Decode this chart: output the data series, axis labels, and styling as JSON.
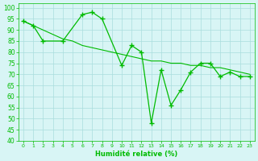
{
  "line_zigzag_x": [
    0,
    1,
    2,
    4,
    6,
    7,
    8,
    10,
    11,
    12,
    13,
    14,
    15,
    16,
    17,
    18,
    19,
    20,
    21,
    22,
    23
  ],
  "line_zigzag_y": [
    94,
    92,
    85,
    85,
    97,
    98,
    95,
    74,
    83,
    80,
    48,
    72,
    56,
    63,
    71,
    75,
    75,
    69,
    71,
    69,
    69
  ],
  "line_straight_x": [
    0,
    1,
    2,
    3,
    4,
    5,
    6,
    7,
    8,
    9,
    10,
    11,
    12,
    13,
    14,
    15,
    16,
    17,
    18,
    19,
    20,
    21,
    22,
    23
  ],
  "line_straight_y": [
    94,
    92,
    90,
    88,
    86,
    85,
    83,
    82,
    81,
    80,
    79,
    78,
    77,
    76,
    76,
    75,
    75,
    74,
    74,
    73,
    73,
    72,
    71,
    70
  ],
  "line_color": "#00bb00",
  "bg_color": "#d8f5f5",
  "grid_color": "#aadddd",
  "xlabel": "Humidité relative (%)",
  "xlim": [
    -0.5,
    23.5
  ],
  "ylim": [
    40,
    102
  ],
  "yticks": [
    40,
    45,
    50,
    55,
    60,
    65,
    70,
    75,
    80,
    85,
    90,
    95,
    100
  ],
  "xticks": [
    0,
    1,
    2,
    3,
    4,
    5,
    6,
    7,
    8,
    9,
    10,
    11,
    12,
    13,
    14,
    15,
    16,
    17,
    18,
    19,
    20,
    21,
    22,
    23
  ]
}
